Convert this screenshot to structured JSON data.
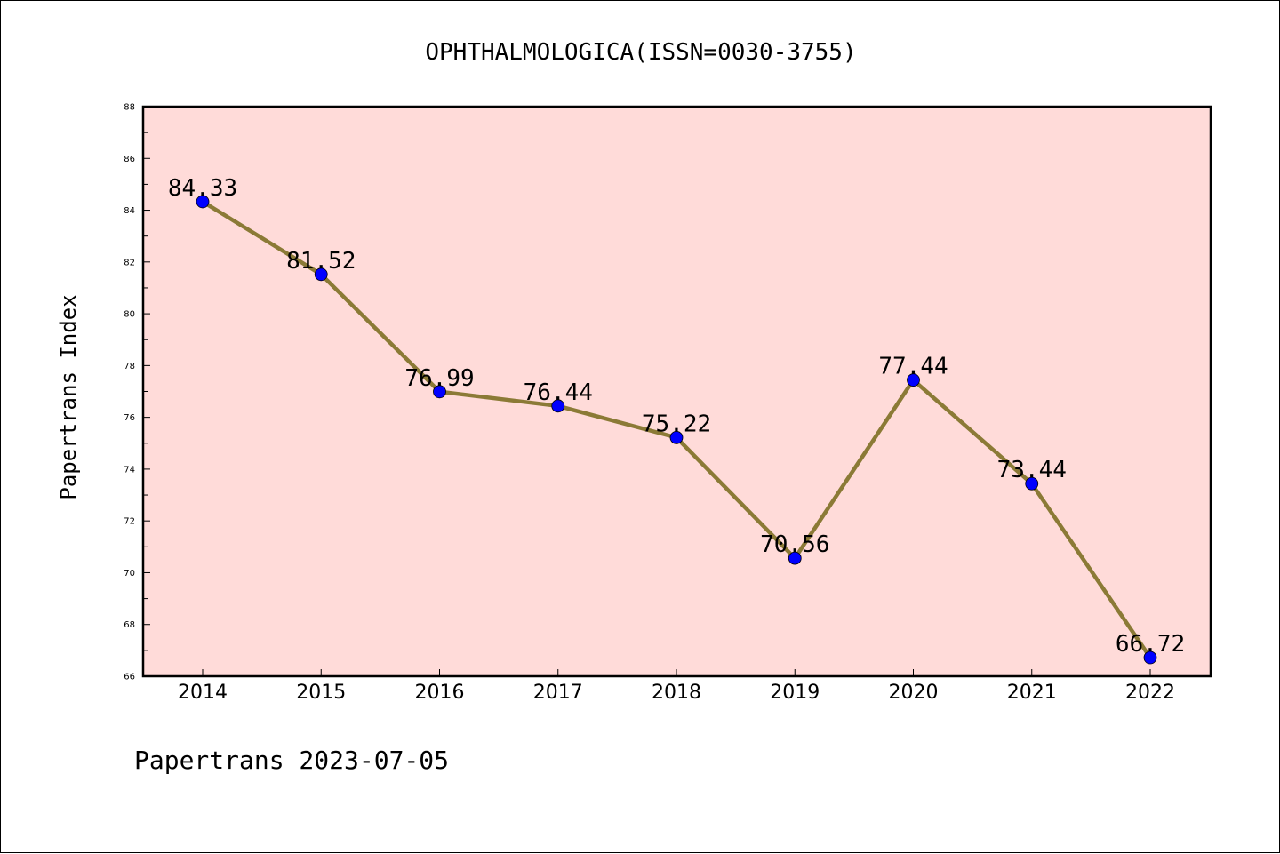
{
  "chart_data": {
    "type": "line",
    "title": "OPHTHALMOLOGICA(ISSN=0030-3755)",
    "ylabel": "Papertrans Index",
    "xlabel": "",
    "footer": "Papertrans 2023-07-05",
    "categories": [
      "2014",
      "2015",
      "2016",
      "2017",
      "2018",
      "2019",
      "2020",
      "2021",
      "2022"
    ],
    "values": [
      84.33,
      81.52,
      76.99,
      76.44,
      75.22,
      70.56,
      77.44,
      73.44,
      66.72
    ],
    "data_labels": [
      "84.33",
      "81.52",
      "76.99",
      "76.44",
      "75.22",
      "70.56",
      "77.44",
      "73.44",
      "66.72"
    ],
    "ylim": [
      66,
      88
    ],
    "yticks": [
      "66",
      "68",
      "70",
      "72",
      "74",
      "76",
      "78",
      "80",
      "82",
      "84",
      "86",
      "88"
    ],
    "grid": false,
    "colors": {
      "plot_background": "#ffdbd9",
      "line": "#8b7a36",
      "marker": "#0000ff"
    }
  }
}
